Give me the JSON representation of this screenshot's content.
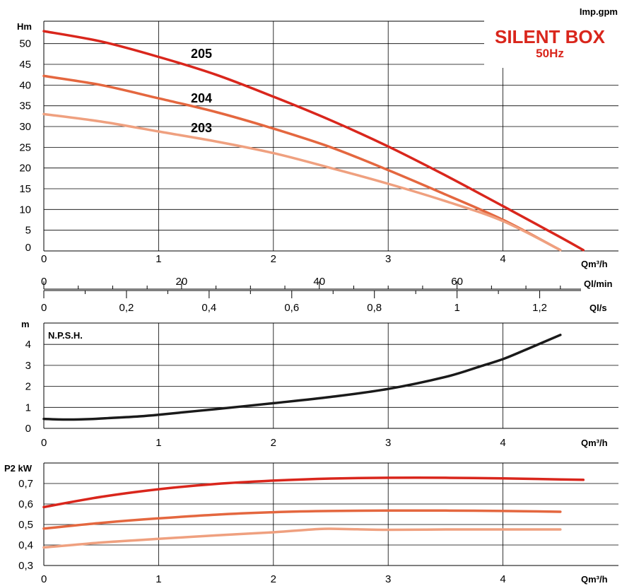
{
  "units_top_right": "Imp.gpm",
  "legend_box": {
    "title": "SILENT BOX",
    "subtitle": "50Hz",
    "color": "#d9261c"
  },
  "colors": {
    "p205": "#d9261c",
    "p204": "#e4673f",
    "p203": "#efa07f",
    "npsh": "#1a1a1a",
    "grid": "#000000"
  },
  "chart_data": [
    {
      "type": "line",
      "name": "head",
      "ylabel": "Hm",
      "xlabel": "Qm³/h",
      "xlim": [
        0,
        5.0
      ],
      "ylim": [
        0,
        55
      ],
      "x_ticks": [
        "0",
        "1",
        "2",
        "3",
        "4"
      ],
      "y_ticks": [
        "0",
        "5",
        "10",
        "15",
        "20",
        "25",
        "30",
        "35",
        "40",
        "45",
        "50"
      ],
      "series": [
        {
          "name": "205",
          "x": [
            0,
            0.5,
            1,
            1.5,
            2,
            2.5,
            3,
            3.5,
            4,
            4.5,
            4.7
          ],
          "values": [
            53,
            50.5,
            46.8,
            42.5,
            37.2,
            31.5,
            25.2,
            18.2,
            10.8,
            3.3,
            0.2
          ]
        },
        {
          "name": "204",
          "x": [
            0,
            0.5,
            1,
            1.5,
            2,
            2.5,
            3,
            3.5,
            4,
            4.5
          ],
          "values": [
            42.2,
            40,
            36.8,
            33.5,
            29.5,
            25,
            19.5,
            13.6,
            7.5,
            0.2
          ]
        },
        {
          "name": "203",
          "x": [
            0,
            0.5,
            1,
            1.5,
            2,
            2.5,
            3,
            3.5,
            4,
            4.5
          ],
          "values": [
            33,
            31.2,
            28.8,
            26.4,
            23.6,
            20,
            16.2,
            12,
            7.2,
            0.2
          ]
        }
      ]
    },
    {
      "type": "line",
      "name": "npsh",
      "title": "N.P.S.H.",
      "ylabel": "m",
      "xlabel": "Qm³/h",
      "xlim": [
        0,
        5.0
      ],
      "ylim": [
        0,
        5
      ],
      "x_ticks": [
        "0",
        "1",
        "2",
        "3",
        "4"
      ],
      "y_ticks": [
        "0",
        "1",
        "2",
        "3",
        "4"
      ],
      "series": [
        {
          "name": "N.P.S.H.",
          "x": [
            0,
            0.2,
            0.4,
            0.6,
            0.8,
            1,
            1.5,
            2,
            2.5,
            3,
            3.5,
            3.8,
            4,
            4.2,
            4.5
          ],
          "values": [
            0.45,
            0.42,
            0.44,
            0.5,
            0.56,
            0.65,
            0.92,
            1.2,
            1.5,
            1.88,
            2.45,
            2.95,
            3.3,
            3.75,
            4.45
          ]
        }
      ]
    },
    {
      "type": "line",
      "name": "power",
      "ylabel": "P2 kW",
      "xlabel": "Qm³/h",
      "xlim": [
        0,
        5.0
      ],
      "ylim": [
        0.3,
        0.75
      ],
      "x_ticks": [
        "0",
        "1",
        "2",
        "3",
        "4"
      ],
      "y_ticks": [
        "0,3",
        "0,4",
        "0,5",
        "0,6",
        "0,7"
      ],
      "series": [
        {
          "name": "205",
          "x": [
            0,
            0.5,
            1,
            1.5,
            2,
            2.5,
            3,
            3.5,
            4,
            4.5,
            4.7
          ],
          "values": [
            0.585,
            0.635,
            0.672,
            0.698,
            0.714,
            0.724,
            0.728,
            0.728,
            0.725,
            0.72,
            0.718
          ]
        },
        {
          "name": "204",
          "x": [
            0,
            0.5,
            1,
            1.5,
            2,
            2.5,
            3,
            3.5,
            4,
            4.5
          ],
          "values": [
            0.48,
            0.508,
            0.53,
            0.548,
            0.56,
            0.566,
            0.568,
            0.568,
            0.566,
            0.562
          ]
        },
        {
          "name": "203",
          "x": [
            0,
            0.5,
            1,
            1.5,
            2,
            2.4,
            2.6,
            3,
            3.5,
            4,
            4.5
          ],
          "values": [
            0.388,
            0.412,
            0.43,
            0.447,
            0.462,
            0.478,
            0.478,
            0.474,
            0.476,
            0.476,
            0.476
          ]
        }
      ]
    }
  ],
  "flow_scales": {
    "lmin": {
      "label": "Ql/min",
      "ticks": [
        "0",
        "20",
        "40",
        "60"
      ]
    },
    "ls": {
      "label": "Ql/s",
      "ticks": [
        "0",
        "0,2",
        "0,4",
        "0,6",
        "0,8",
        "1",
        "1,2"
      ]
    }
  }
}
